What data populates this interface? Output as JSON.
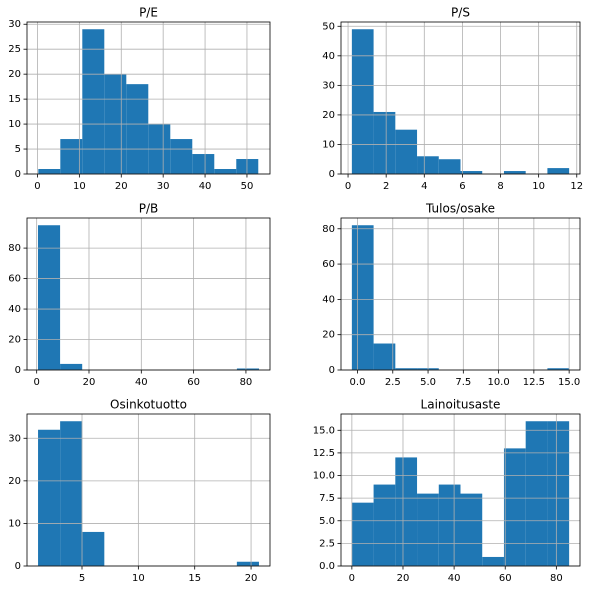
{
  "chart_data": [
    {
      "type": "histogram",
      "title": "P/E",
      "color": "#1f77b4",
      "grid": true,
      "bins": [
        0.2,
        5.45,
        10.7,
        15.95,
        21.2,
        26.45,
        31.7,
        36.95,
        42.2,
        47.45,
        52.7
      ],
      "values": [
        1,
        7,
        29,
        20,
        18,
        10,
        7,
        4,
        1,
        3
      ],
      "xlim": [
        -2.5,
        55.5
      ],
      "xticks": [
        0,
        10,
        20,
        30,
        40,
        50
      ],
      "ylim": [
        0,
        30.45
      ],
      "yticks": [
        0,
        5,
        10,
        15,
        20,
        25,
        30
      ]
    },
    {
      "type": "histogram",
      "title": "P/S",
      "color": "#1f77b4",
      "grid": true,
      "bins": [
        0.2,
        1.34,
        2.48,
        3.62,
        4.76,
        5.9,
        7.04,
        8.18,
        9.32,
        10.46,
        11.6
      ],
      "values": [
        49,
        21,
        15,
        6,
        5,
        1,
        0,
        1,
        0,
        2
      ],
      "xlim": [
        -0.37,
        12.17
      ],
      "xticks": [
        0,
        2,
        4,
        6,
        8,
        10,
        12
      ],
      "ylim": [
        0,
        51.45
      ],
      "yticks": [
        0,
        10,
        20,
        30,
        40,
        50
      ]
    },
    {
      "type": "histogram",
      "title": "P/B",
      "color": "#1f77b4",
      "grid": true,
      "bins": [
        0.5,
        8.95,
        17.4,
        25.85,
        34.3,
        42.75,
        51.2,
        59.65,
        68.1,
        76.55,
        85.0
      ],
      "values": [
        95,
        4,
        0,
        0,
        0,
        0,
        0,
        0,
        0,
        1
      ],
      "xlim": [
        -3.7,
        89.2
      ],
      "xticks": [
        0,
        20,
        40,
        60,
        80
      ],
      "ylim": [
        0,
        99.75
      ],
      "yticks": [
        0,
        20,
        40,
        60,
        80
      ]
    },
    {
      "type": "histogram",
      "title": "Tulos/osake",
      "color": "#1f77b4",
      "grid": true,
      "bins": [
        -0.4,
        1.14,
        2.68,
        4.22,
        5.76,
        7.3,
        8.84,
        10.38,
        11.92,
        13.46,
        15.0
      ],
      "values": [
        82,
        15,
        1,
        1,
        0,
        0,
        0,
        0,
        0,
        1
      ],
      "xlim": [
        -1.17,
        15.77
      ],
      "xticks": [
        {
          "value": 0,
          "label": "0.0"
        },
        {
          "value": 2.5,
          "label": "2.5"
        },
        {
          "value": 5,
          "label": "5.0"
        },
        {
          "value": 7.5,
          "label": "7.5"
        },
        {
          "value": 10,
          "label": "10.0"
        },
        {
          "value": 12.5,
          "label": "12.5"
        },
        {
          "value": 15,
          "label": "15.0"
        }
      ],
      "ylim": [
        0,
        86.1
      ],
      "yticks": [
        0,
        20,
        40,
        60,
        80
      ]
    },
    {
      "type": "histogram",
      "title": "Osinkotuotto",
      "color": "#1f77b4",
      "grid": true,
      "bins": [
        1.1,
        3.06,
        5.02,
        6.98,
        8.94,
        10.9,
        12.86,
        14.82,
        16.78,
        18.74,
        20.7
      ],
      "values": [
        32,
        34,
        8,
        0,
        0,
        0,
        0,
        0,
        0,
        1
      ],
      "xlim": [
        0.12,
        21.68
      ],
      "xticks": [
        5,
        10,
        15,
        20
      ],
      "ylim": [
        0,
        35.7
      ],
      "yticks": [
        0,
        10,
        20,
        30
      ]
    },
    {
      "type": "histogram",
      "title": "Lainoitusaste",
      "color": "#1f77b4",
      "grid": true,
      "bins": [
        0,
        8.5,
        17,
        25.5,
        34,
        42.5,
        51,
        59.5,
        68,
        76.5,
        85
      ],
      "values": [
        7,
        9,
        12,
        8,
        9,
        8,
        1,
        13,
        16,
        16
      ],
      "xlim": [
        -4.25,
        89.25
      ],
      "xticks": [
        0,
        20,
        40,
        60,
        80
      ],
      "ylim": [
        0,
        16.8
      ],
      "yticks": [
        {
          "value": 0,
          "label": "0.0"
        },
        {
          "value": 2.5,
          "label": "2.5"
        },
        {
          "value": 5,
          "label": "5.0"
        },
        {
          "value": 7.5,
          "label": "7.5"
        },
        {
          "value": 10,
          "label": "10.0"
        },
        {
          "value": 12.5,
          "label": "12.5"
        },
        {
          "value": 15,
          "label": "15.0"
        }
      ]
    }
  ]
}
